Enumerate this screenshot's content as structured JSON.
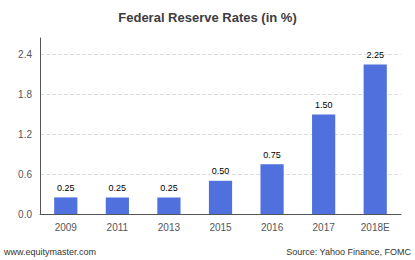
{
  "chart_data": {
    "type": "bar",
    "title": "Federal Reserve Rates (in %)",
    "categories": [
      "2009",
      "2011",
      "2013",
      "2015",
      "2016",
      "2017",
      "2018E"
    ],
    "values": [
      0.25,
      0.25,
      0.25,
      0.5,
      0.75,
      1.5,
      2.25
    ],
    "value_labels": [
      "0.25",
      "0.25",
      "0.25",
      "0.50",
      "0.75",
      "1.50",
      "2.25"
    ],
    "data_labels": true,
    "ylim": [
      0,
      2.65
    ],
    "yticks": [
      {
        "value": 0.0,
        "label": "0.0"
      },
      0.6,
      1.2,
      1.8,
      2.4
    ],
    "grid": true,
    "annotations": [
      "www.equitymaster.com",
      "Source: Yahoo Finance, FOMC"
    ]
  }
}
